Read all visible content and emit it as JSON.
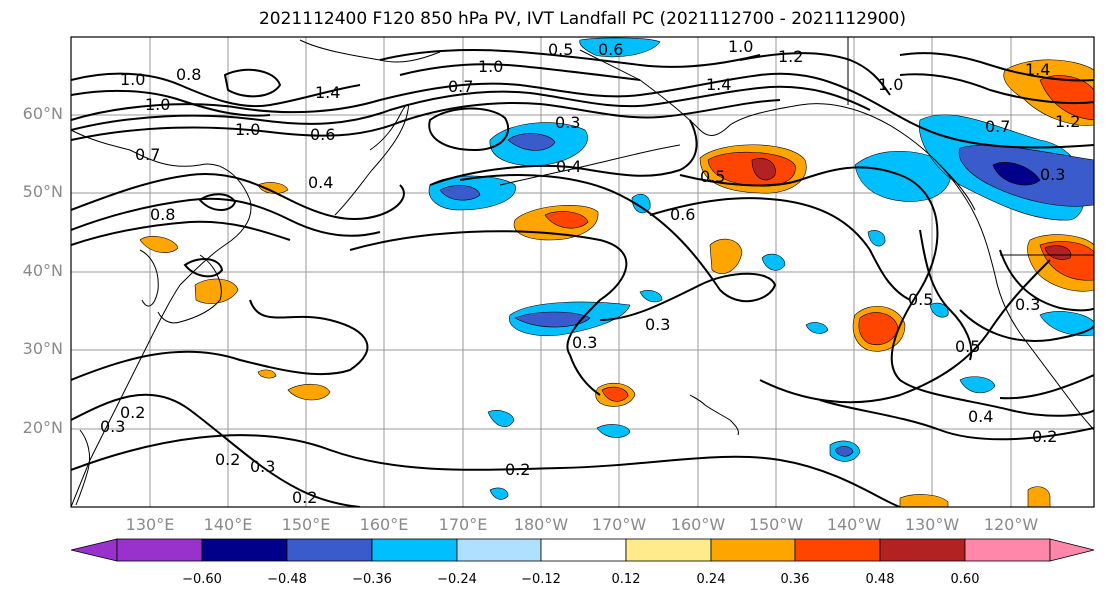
{
  "title": "2021112400 F120 850 hPa PV, IVT Landfall PC (2021112700 - 2021112900)",
  "lat_labels": [
    "60°N",
    "50°N",
    "40°N",
    "30°N",
    "20°N"
  ],
  "lon_labels": [
    "130°E",
    "140°E",
    "150°E",
    "160°E",
    "170°E",
    "180°W",
    "170°W",
    "160°W",
    "150°W",
    "140°W",
    "130°W",
    "120°W"
  ],
  "colorbar": {
    "ticks": [
      "−0.60",
      "−0.48",
      "−0.36",
      "−0.24",
      "−0.12",
      "0.12",
      "0.24",
      "0.36",
      "0.48",
      "0.60"
    ],
    "colors": [
      "#9932cc",
      "#00008b",
      "#3a5bcb",
      "#00bfff",
      "#b0e0ff",
      "#ffffff",
      "#ffea8c",
      "#ffa500",
      "#ff4500",
      "#b22222",
      "#ff88aa"
    ]
  },
  "contour_labels": [
    "0.8",
    "1.0",
    "1.0",
    "0.7",
    "1.4",
    "1.0",
    "0.6",
    "0.7",
    "1.0",
    "0.5",
    "0.6",
    "1.0",
    "1.4",
    "1.2",
    "1.0",
    "1.4",
    "0.3",
    "0.4",
    "0.5",
    "0.6",
    "0.8",
    "0.3",
    "0.3",
    "0.5",
    "0.5",
    "0.3",
    "0.2",
    "0.3",
    "0.2",
    "0.2",
    "0.2",
    "0.4",
    "0.2",
    "0.3",
    "1.2",
    "0.7",
    "0.3",
    "0.4"
  ]
}
